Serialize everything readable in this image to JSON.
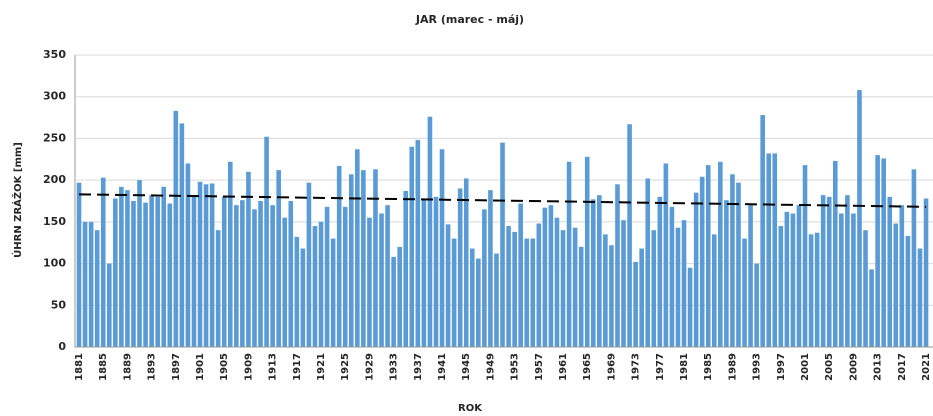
{
  "chart_data": {
    "type": "bar",
    "title": "JAR (marec - máj)",
    "xlabel": "ROK",
    "ylabel": "ÚHRN ZRÁŽOK [mm]",
    "categories": [
      "1881",
      null,
      null,
      null,
      "1885",
      null,
      null,
      null,
      "1889",
      null,
      null,
      null,
      "1893",
      null,
      null,
      null,
      "1897",
      null,
      null,
      null,
      "1901",
      null,
      null,
      null,
      "1905",
      null,
      null,
      null,
      "1909",
      null,
      null,
      null,
      "1913",
      null,
      null,
      null,
      "1917",
      null,
      null,
      null,
      "1921",
      null,
      null,
      null,
      "1925",
      null,
      null,
      null,
      "1929",
      null,
      null,
      null,
      "1933",
      null,
      null,
      null,
      "1937",
      null,
      null,
      null,
      "1941",
      null,
      null,
      null,
      "1945",
      null,
      null,
      null,
      "1949",
      null,
      null,
      null,
      "1953",
      null,
      null,
      null,
      "1957",
      null,
      null,
      null,
      "1961",
      null,
      null,
      null,
      "1965",
      null,
      null,
      null,
      "1969",
      null,
      null,
      null,
      "1973",
      null,
      null,
      null,
      "1977",
      null,
      null,
      null,
      "1981",
      null,
      null,
      null,
      "1985",
      null,
      null,
      null,
      "1989",
      null,
      null,
      null,
      "1993",
      null,
      null,
      null,
      "1997",
      null,
      null,
      null,
      "2001",
      null,
      null,
      null,
      "2005",
      null,
      null,
      null,
      "2009",
      null,
      null,
      null,
      "2013",
      null,
      null,
      null,
      "2017",
      null,
      null,
      null,
      "2021"
    ],
    "values": [
      197,
      150,
      150,
      140,
      203,
      100,
      178,
      192,
      188,
      175,
      200,
      173,
      182,
      180,
      192,
      172,
      283,
      268,
      220,
      180,
      198,
      195,
      196,
      140,
      180,
      222,
      170,
      176,
      210,
      165,
      175,
      252,
      170,
      212,
      155,
      175,
      132,
      118,
      197,
      145,
      150,
      168,
      130,
      217,
      168,
      207,
      237,
      212,
      155,
      213,
      160,
      170,
      108,
      120,
      187,
      240,
      248,
      178,
      276,
      180,
      237,
      147,
      130,
      190,
      202,
      118,
      106,
      165,
      188,
      112,
      245,
      145,
      138,
      172,
      130,
      130,
      148,
      167,
      170,
      155,
      140,
      222,
      143,
      120,
      228,
      177,
      182,
      135,
      122,
      195,
      152,
      267,
      102,
      118,
      202,
      140,
      180,
      220,
      168,
      143,
      152,
      95,
      185,
      204,
      218,
      135,
      222,
      176,
      207,
      197,
      130,
      170,
      100,
      278,
      232,
      232,
      145,
      162,
      160,
      170,
      218,
      135,
      137,
      182,
      180,
      223,
      160,
      182,
      160,
      308,
      140,
      93,
      230,
      226,
      180,
      148,
      170,
      133,
      213,
      118,
      178
    ],
    "color": "#5b9bd5",
    "trendline": {
      "values": [
        183,
        168
      ],
      "color": "#000000"
    },
    "ylim": [
      0,
      350
    ],
    "yticks": [
      0,
      50,
      100,
      150,
      200,
      250,
      300,
      350
    ],
    "grid": true
  }
}
